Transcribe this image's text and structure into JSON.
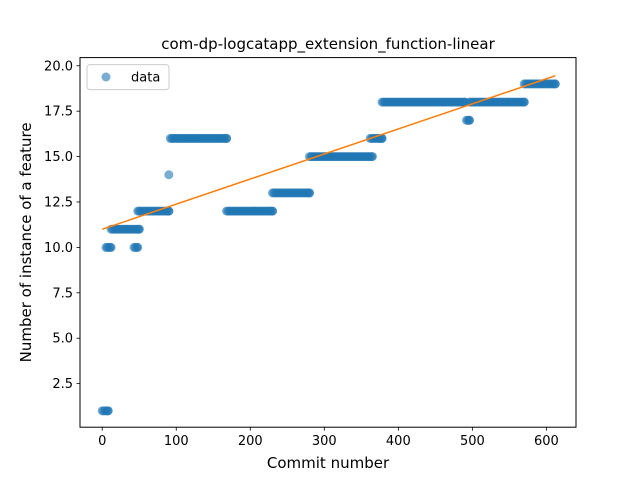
{
  "chart_data": {
    "type": "scatter",
    "title": "com-dp-logcatapp_extension_function-linear",
    "xlabel": "Commit number",
    "ylabel": "Number of instance of a feature",
    "xlim": [
      -30,
      640
    ],
    "ylim": [
      0.1,
      20.45
    ],
    "xticks": [
      "0",
      "100",
      "200",
      "300",
      "400",
      "500",
      "600"
    ],
    "xtick_values": [
      0,
      100,
      200,
      300,
      400,
      500,
      600
    ],
    "yticks": [
      "2.5",
      "5.0",
      "7.5",
      "10.0",
      "12.5",
      "15.0",
      "17.5",
      "20.0"
    ],
    "ytick_values": [
      2.5,
      5.0,
      7.5,
      10.0,
      12.5,
      15.0,
      17.5,
      20.0
    ],
    "grid": false,
    "legend_position": "top-left",
    "colors": {
      "data": "#1f77b4",
      "fit": "#ff7f0e"
    },
    "series": [
      {
        "name": "data",
        "kind": "points",
        "segments": [
          {
            "x_start": 0,
            "x_end": 8,
            "y": 1
          },
          {
            "x_start": 5,
            "x_end": 12,
            "y": 10
          },
          {
            "x_start": 12,
            "x_end": 50,
            "y": 11
          },
          {
            "x_start": 43,
            "x_end": 48,
            "y": 10
          },
          {
            "x_start": 48,
            "x_end": 90,
            "y": 12
          },
          {
            "x_start": 90,
            "x_end": 90,
            "y": 14
          },
          {
            "x_start": 92,
            "x_end": 168,
            "y": 16
          },
          {
            "x_start": 168,
            "x_end": 230,
            "y": 12
          },
          {
            "x_start": 230,
            "x_end": 280,
            "y": 13
          },
          {
            "x_start": 280,
            "x_end": 365,
            "y": 15
          },
          {
            "x_start": 362,
            "x_end": 378,
            "y": 16
          },
          {
            "x_start": 378,
            "x_end": 490,
            "y": 18
          },
          {
            "x_start": 492,
            "x_end": 496,
            "y": 17
          },
          {
            "x_start": 496,
            "x_end": 570,
            "y": 18
          },
          {
            "x_start": 570,
            "x_end": 612,
            "y": 19
          }
        ]
      },
      {
        "name": "",
        "kind": "line",
        "x": [
          0,
          612
        ],
        "y": [
          11.0,
          19.45
        ]
      }
    ]
  }
}
